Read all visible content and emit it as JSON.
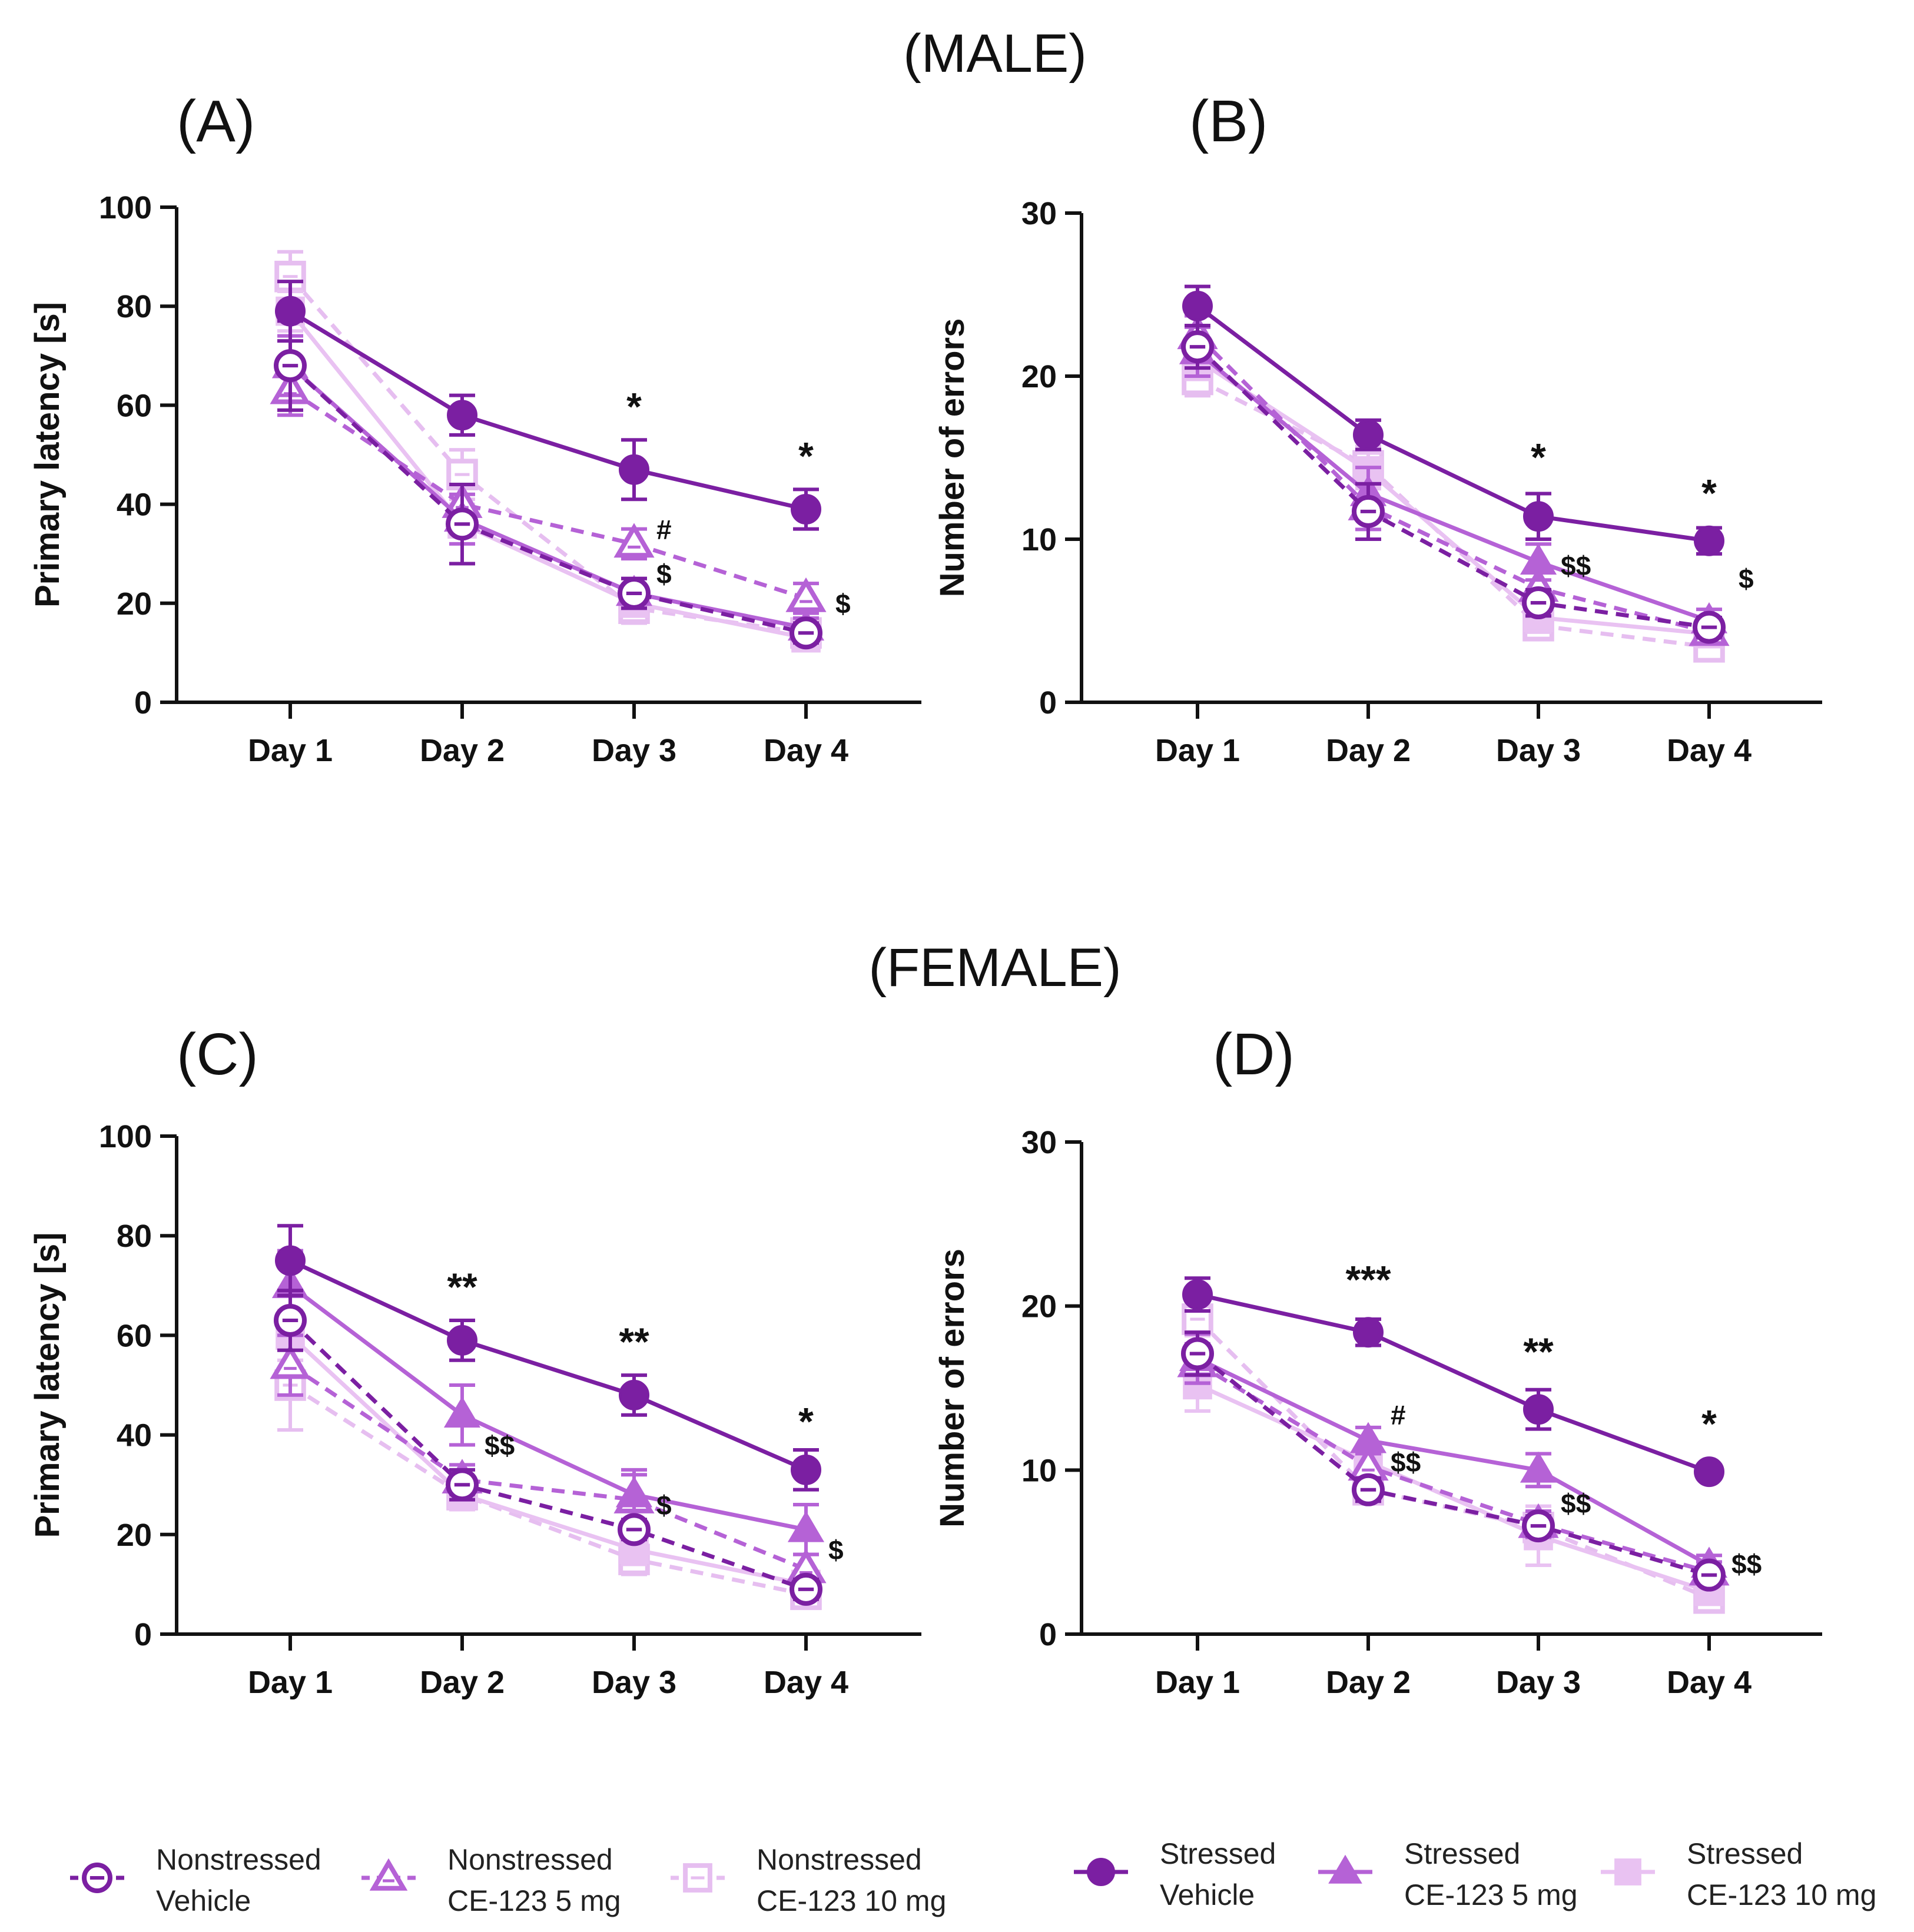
{
  "section_titles": {
    "male": "(MALE)",
    "female": "(FEMALE)"
  },
  "colors": {
    "nonstressed_vehicle": "#7B1FA2",
    "nonstressed_5mg": "#B562D6",
    "nonstressed_10mg": "#E6BEF0",
    "stressed_vehicle": "#7B1FA2",
    "stressed_5mg": "#B562D6",
    "stressed_10mg": "#E9C2F2",
    "axis": "#111111"
  },
  "legend": [
    {
      "key": "nonstressed_vehicle",
      "line1": "Nonstressed",
      "line2": "Vehicle",
      "marker": "circle",
      "filled": false,
      "dashed": true
    },
    {
      "key": "nonstressed_5mg",
      "line1": "Nonstressed",
      "line2": "CE-123 5 mg",
      "marker": "triangle",
      "filled": false,
      "dashed": true
    },
    {
      "key": "nonstressed_10mg",
      "line1": "Nonstressed",
      "line2": "CE-123 10 mg",
      "marker": "square",
      "filled": false,
      "dashed": true
    },
    {
      "key": "stressed_vehicle",
      "line1": "Stressed",
      "line2": "Vehicle",
      "marker": "circle",
      "filled": true,
      "dashed": false
    },
    {
      "key": "stressed_5mg",
      "line1": "Stressed",
      "line2": "CE-123 5 mg",
      "marker": "triangle",
      "filled": true,
      "dashed": false
    },
    {
      "key": "stressed_10mg",
      "line1": "Stressed",
      "line2": "CE-123 10 mg",
      "marker": "square",
      "filled": true,
      "dashed": false
    }
  ],
  "chart_data": [
    {
      "id": "A",
      "label": "(A)",
      "type": "line",
      "title": "",
      "xlabel": "",
      "ylabel": "Primary latency [s]",
      "categories": [
        "Day 1",
        "Day 2",
        "Day 3",
        "Day 4"
      ],
      "ylim": [
        0,
        100
      ],
      "yticks": [
        0,
        20,
        40,
        60,
        80,
        100
      ],
      "grid": false,
      "series": [
        {
          "name": "Nonstressed Vehicle",
          "key": "nonstressed_vehicle",
          "values": [
            68,
            36,
            22,
            14
          ],
          "errors": [
            9,
            8,
            3,
            2
          ]
        },
        {
          "name": "Nonstressed CE-123 5 mg",
          "key": "nonstressed_5mg",
          "values": [
            63,
            40,
            32,
            21
          ],
          "errors": [
            5,
            4,
            3,
            3
          ]
        },
        {
          "name": "Nonstressed CE-123 10 mg",
          "key": "nonstressed_10mg",
          "values": [
            86,
            46,
            19,
            14
          ],
          "errors": [
            5,
            5,
            3,
            3
          ]
        },
        {
          "name": "Stressed Vehicle",
          "key": "stressed_vehicle",
          "values": [
            79,
            58,
            47,
            39
          ],
          "errors": [
            6,
            4,
            6,
            4
          ]
        },
        {
          "name": "Stressed CE-123 5 mg",
          "key": "stressed_5mg",
          "values": [
            68,
            37,
            22,
            15
          ],
          "errors": [
            6,
            5,
            3,
            2
          ]
        },
        {
          "name": "Stressed CE-123 10 mg",
          "key": "stressed_10mg",
          "values": [
            79,
            36,
            20,
            13
          ],
          "errors": [
            4,
            4,
            2,
            2
          ]
        }
      ],
      "annotations": [
        {
          "text": "*",
          "category": "Day 3",
          "y": 57
        },
        {
          "text": "#",
          "category": "Day 3",
          "y": 33,
          "offset": "right"
        },
        {
          "text": "$",
          "category": "Day 3",
          "y": 24,
          "offset": "right"
        },
        {
          "text": "*",
          "category": "Day 4",
          "y": 47
        },
        {
          "text": "$",
          "category": "Day 4",
          "y": 18,
          "offset": "right-far"
        }
      ]
    },
    {
      "id": "B",
      "label": "(B)",
      "type": "line",
      "title": "",
      "xlabel": "",
      "ylabel": "Number of errors",
      "categories": [
        "Day 1",
        "Day 2",
        "Day 3",
        "Day 4"
      ],
      "ylim": [
        0,
        30
      ],
      "yticks": [
        0,
        10,
        20,
        30
      ],
      "grid": false,
      "series": [
        {
          "name": "Nonstressed Vehicle",
          "key": "nonstressed_vehicle",
          "values": [
            21.8,
            11.7,
            6.1,
            4.6
          ],
          "errors": [
            1.3,
            1.7,
            0.8,
            0.6
          ]
        },
        {
          "name": "Nonstressed CE-123 5 mg",
          "key": "nonstressed_5mg",
          "values": [
            22.5,
            12.0,
            7.0,
            4.3
          ],
          "errors": [
            1.2,
            1.4,
            1.0,
            0.7
          ]
        },
        {
          "name": "Nonstressed CE-123 10 mg",
          "key": "nonstressed_10mg",
          "values": [
            19.8,
            14.5,
            4.7,
            3.4
          ],
          "errors": [
            1.0,
            1.2,
            0.6,
            0.5
          ]
        },
        {
          "name": "Stressed Vehicle",
          "key": "stressed_vehicle",
          "values": [
            24.3,
            16.4,
            11.4,
            9.9
          ],
          "errors": [
            1.2,
            0.9,
            1.4,
            0.8
          ]
        },
        {
          "name": "Stressed CE-123 5 mg",
          "key": "stressed_5mg",
          "values": [
            21.5,
            12.8,
            8.6,
            5.0
          ],
          "errors": [
            1.5,
            1.6,
            1.1,
            0.7
          ]
        },
        {
          "name": "Stressed CE-123 10 mg",
          "key": "stressed_10mg",
          "values": [
            21.0,
            14.2,
            5.2,
            4.2
          ],
          "errors": [
            1.2,
            1.1,
            0.9,
            0.5
          ]
        }
      ],
      "annotations": [
        {
          "text": "*",
          "category": "Day 3",
          "y": 14.2
        },
        {
          "text": "$$",
          "category": "Day 3",
          "y": 7.8,
          "offset": "right"
        },
        {
          "text": "*",
          "category": "Day 4",
          "y": 12.0
        },
        {
          "text": "$",
          "category": "Day 4",
          "y": 7.0,
          "offset": "right-far"
        }
      ]
    },
    {
      "id": "C",
      "label": "(C)",
      "type": "line",
      "title": "",
      "xlabel": "",
      "ylabel": "Primary latency [s]",
      "categories": [
        "Day 1",
        "Day 2",
        "Day 3",
        "Day 4"
      ],
      "ylim": [
        0,
        100
      ],
      "yticks": [
        0,
        20,
        40,
        60,
        80,
        100
      ],
      "grid": false,
      "series": [
        {
          "name": "Nonstressed Vehicle",
          "key": "nonstressed_vehicle",
          "values": [
            63,
            30,
            21,
            9
          ],
          "errors": [
            6,
            3,
            2,
            2
          ]
        },
        {
          "name": "Nonstressed CE-123 5 mg",
          "key": "nonstressed_5mg",
          "values": [
            54,
            31,
            27,
            13
          ],
          "errors": [
            6,
            3,
            5,
            3
          ]
        },
        {
          "name": "Nonstressed CE-123 10 mg",
          "key": "nonstressed_10mg",
          "values": [
            50,
            28,
            15,
            8
          ],
          "errors": [
            9,
            3,
            3,
            2
          ]
        },
        {
          "name": "Stressed Vehicle",
          "key": "stressed_vehicle",
          "values": [
            75,
            59,
            48,
            33
          ],
          "errors": [
            7,
            4,
            4,
            4
          ]
        },
        {
          "name": "Stressed CE-123 5 mg",
          "key": "stressed_5mg",
          "values": [
            70,
            44,
            28,
            21
          ],
          "errors": [
            7,
            6,
            5,
            5
          ]
        },
        {
          "name": "Stressed CE-123 10 mg",
          "key": "stressed_10mg",
          "values": [
            60,
            28,
            17,
            10
          ],
          "errors": [
            5,
            3,
            3,
            2
          ]
        }
      ],
      "annotations": [
        {
          "text": "**",
          "category": "Day 2",
          "y": 67
        },
        {
          "text": "$$",
          "category": "Day 2",
          "y": 36,
          "offset": "right"
        },
        {
          "text": "**",
          "category": "Day 3",
          "y": 56
        },
        {
          "text": "$",
          "category": "Day 3",
          "y": 24,
          "offset": "right"
        },
        {
          "text": "*",
          "category": "Day 4",
          "y": 40
        },
        {
          "text": "$",
          "category": "Day 4",
          "y": 15,
          "offset": "right"
        }
      ]
    },
    {
      "id": "D",
      "label": "(D)",
      "type": "line",
      "title": "",
      "xlabel": "",
      "ylabel": "Number of errors",
      "categories": [
        "Day 1",
        "Day 2",
        "Day 3",
        "Day 4"
      ],
      "ylim": [
        0,
        30
      ],
      "yticks": [
        0,
        10,
        20,
        30
      ],
      "grid": false,
      "series": [
        {
          "name": "Nonstressed Vehicle",
          "key": "nonstressed_vehicle",
          "values": [
            17.1,
            8.8,
            6.6,
            3.6
          ],
          "errors": [
            1.3,
            0.7,
            0.6,
            0.5
          ]
        },
        {
          "name": "Nonstressed CE-123 5 mg",
          "key": "nonstressed_5mg",
          "values": [
            16.5,
            10.2,
            6.7,
            3.8
          ],
          "errors": [
            1.2,
            1.0,
            0.8,
            0.6
          ]
        },
        {
          "name": "Nonstressed CE-123 10 mg",
          "key": "nonstressed_10mg",
          "values": [
            19.2,
            8.8,
            6.5,
            2.2
          ],
          "errors": [
            1.0,
            0.8,
            0.7,
            0.5
          ]
        },
        {
          "name": "Stressed Vehicle",
          "key": "stressed_vehicle",
          "values": [
            20.7,
            18.4,
            13.7,
            9.9
          ],
          "errors": [
            1.0,
            0.8,
            1.2,
            0.4
          ]
        },
        {
          "name": "Stressed CE-123 5 mg",
          "key": "stressed_5mg",
          "values": [
            16.8,
            11.8,
            10.0,
            4.2
          ],
          "errors": [
            1.5,
            0.8,
            1.0,
            0.6
          ]
        },
        {
          "name": "Stressed CE-123 10 mg",
          "key": "stressed_10mg",
          "values": [
            15.2,
            10.5,
            6.0,
            2.6
          ],
          "errors": [
            1.6,
            1.0,
            1.8,
            0.5
          ]
        }
      ],
      "annotations": [
        {
          "text": "***",
          "category": "Day 2",
          "y": 20.8
        },
        {
          "text": "#",
          "category": "Day 2",
          "y": 12.8,
          "offset": "right"
        },
        {
          "text": "$$",
          "category": "Day 2",
          "y": 9.9,
          "offset": "right"
        },
        {
          "text": "**",
          "category": "Day 3",
          "y": 16.4
        },
        {
          "text": "$$",
          "category": "Day 3",
          "y": 7.4,
          "offset": "right"
        },
        {
          "text": "*",
          "category": "Day 4",
          "y": 12.0
        },
        {
          "text": "$$",
          "category": "Day 4",
          "y": 3.7,
          "offset": "right"
        }
      ]
    }
  ]
}
